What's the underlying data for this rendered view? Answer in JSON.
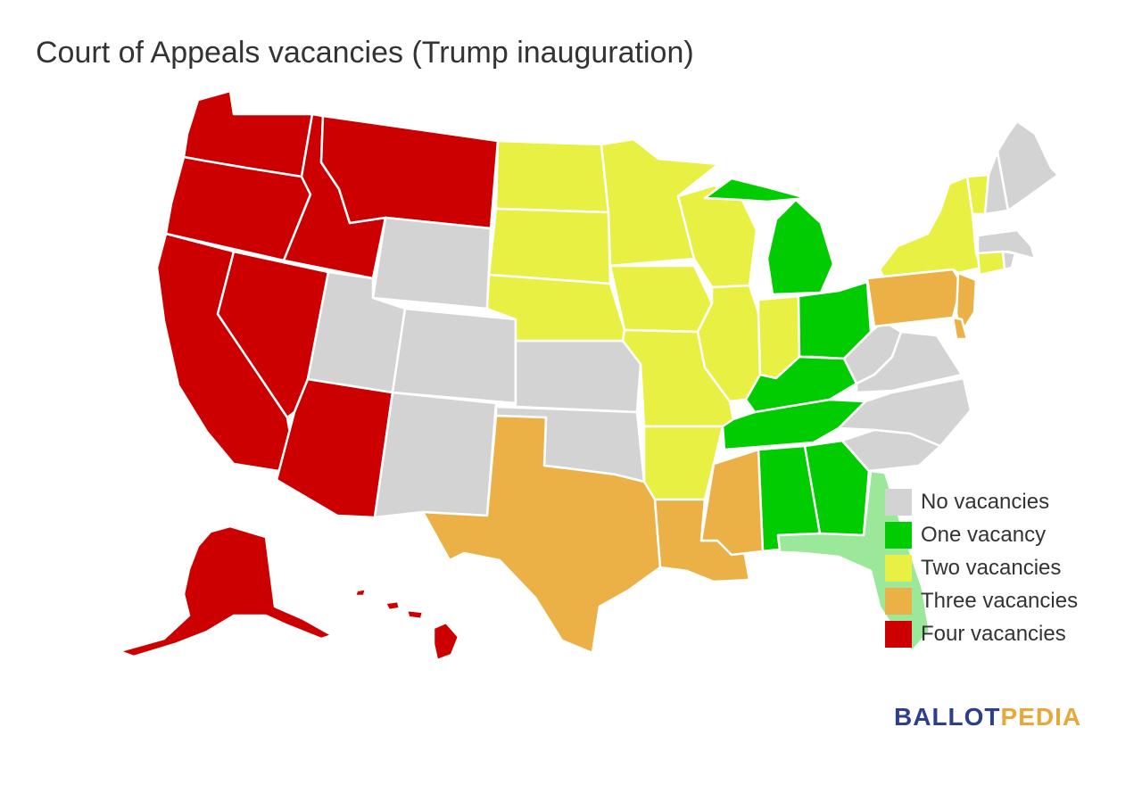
{
  "title": "Court of Appeals vacancies (Trump inauguration)",
  "colors": {
    "none": "#d3d3d3",
    "one": "#00cc00",
    "two": "#e8f044",
    "three": "#ebb146",
    "four": "#cc0000",
    "florida": "#9be89b",
    "background": "#ffffff"
  },
  "legend": [
    {
      "label": "No vacancies",
      "color": "#d3d3d3"
    },
    {
      "label": "One vacancy",
      "color": "#00cc00"
    },
    {
      "label": "Two vacancies",
      "color": "#e8f044"
    },
    {
      "label": "Three vacancies",
      "color": "#ebb146"
    },
    {
      "label": "Four vacancies",
      "color": "#cc0000"
    }
  ],
  "brand": {
    "part1": "BALLOT",
    "part2": "PEDIA"
  },
  "states": {
    "WA": "four",
    "OR": "four",
    "CA": "four",
    "NV": "four",
    "ID": "four",
    "MT": "four",
    "AZ": "four",
    "AK": "four",
    "HI": "four",
    "WY": "none",
    "UT": "none",
    "CO": "none",
    "NM": "none",
    "KS": "none",
    "OK": "none",
    "WV": "none",
    "VA": "none",
    "NC": "none",
    "SC": "none",
    "ME": "none",
    "NH": "none",
    "MA": "none",
    "RI": "none",
    "ND": "two",
    "SD": "two",
    "NE": "two",
    "MN": "two",
    "IA": "two",
    "MO": "two",
    "AR": "two",
    "WI": "two",
    "IL": "two",
    "IN": "two",
    "NY": "two",
    "VT": "two",
    "CT": "two",
    "TX": "three",
    "LA": "three",
    "MS": "three",
    "PA": "three",
    "NJ": "three",
    "DE": "three",
    "MI": "one",
    "OH": "one",
    "KY": "one",
    "TN": "one",
    "AL": "one",
    "GA": "one",
    "FL": "florida"
  }
}
